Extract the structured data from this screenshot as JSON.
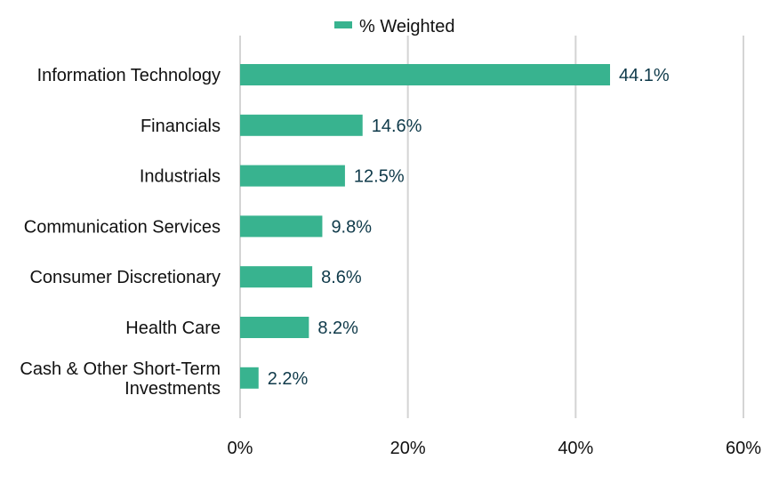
{
  "chart_data": {
    "type": "bar",
    "orientation": "horizontal",
    "categories": [
      "Information Technology",
      "Financials",
      "Industrials",
      "Communication Services",
      "Consumer Discretionary",
      "Health Care",
      "Cash & Other Short-Term Investments"
    ],
    "category_label_lines": [
      [
        "Information Technology"
      ],
      [
        "Financials"
      ],
      [
        "Industrials"
      ],
      [
        "Communication Services"
      ],
      [
        "Consumer Discretionary"
      ],
      [
        "Health Care"
      ],
      [
        "Cash & Other Short-Term",
        "Investments"
      ]
    ],
    "series": [
      {
        "name": "% Weighted",
        "values": [
          44.1,
          14.6,
          12.5,
          9.8,
          8.6,
          8.2,
          2.2
        ],
        "labels": [
          "44.1%",
          "14.6%",
          "12.5%",
          "9.8%",
          "8.6%",
          "8.2%",
          "2.2%"
        ]
      }
    ],
    "xlim": [
      0,
      60
    ],
    "x_ticks": [
      0,
      20,
      40,
      60
    ],
    "x_tick_labels": [
      "0%",
      "20%",
      "40%",
      "60%"
    ],
    "grid": "vertical",
    "legend_position": "top-center",
    "colors": {
      "bar": "#38b38f",
      "data_label": "#0f3a4a",
      "grid": "#d4d4d4"
    }
  }
}
